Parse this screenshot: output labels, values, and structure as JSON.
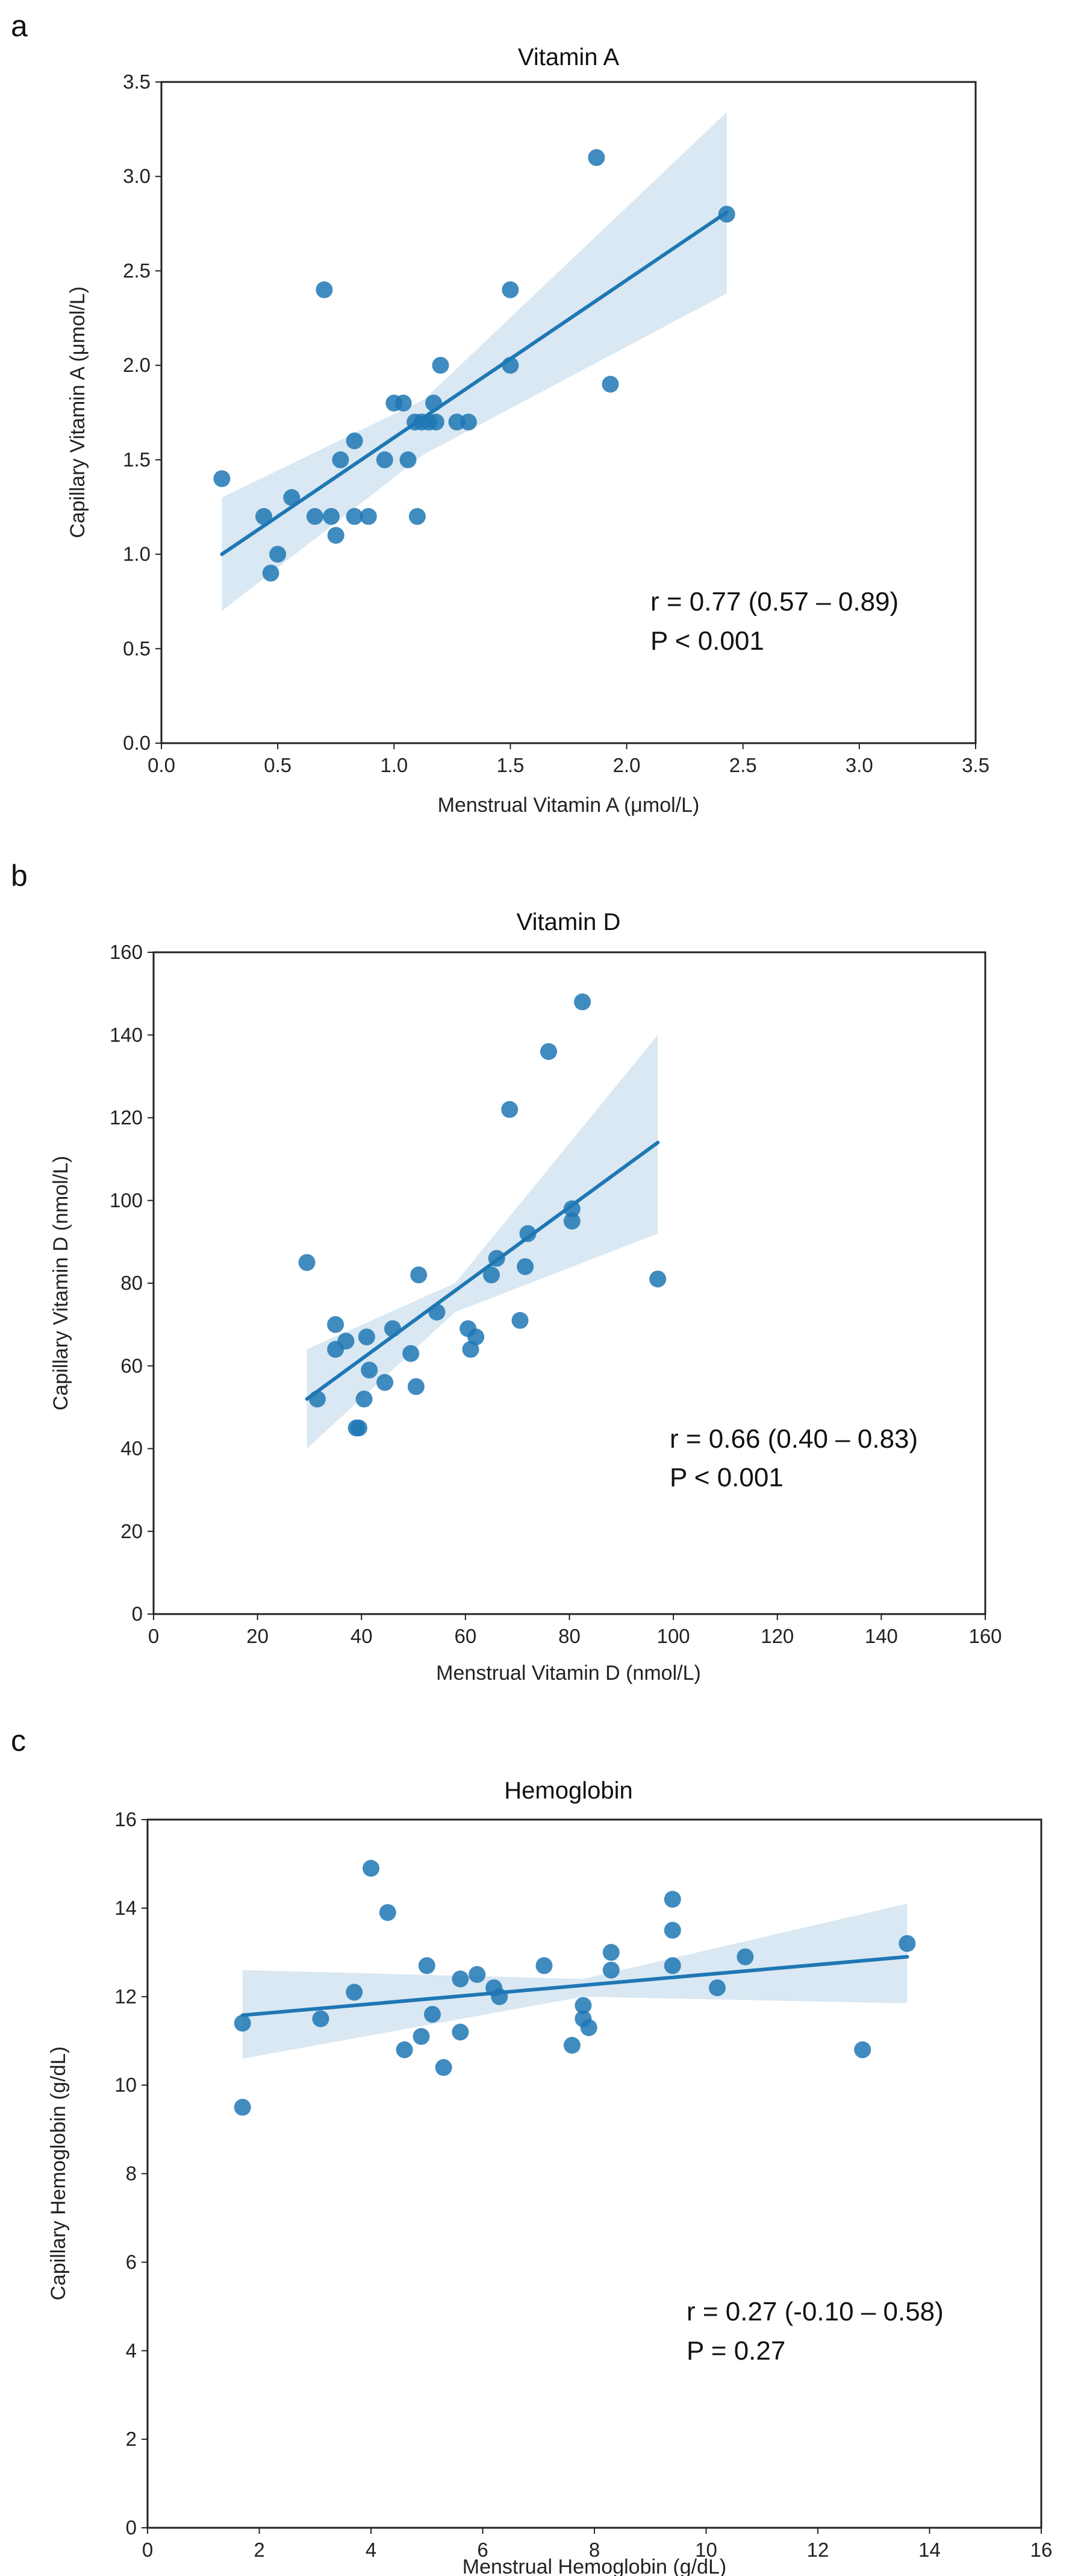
{
  "chart_data": [
    {
      "type": "scatter",
      "panel_label": "a",
      "title": "Vitamin A",
      "xlabel": "Menstrual Vitamin A (μmol/L)",
      "ylabel": "Capillary Vitamin A (μmol/L)",
      "xlim": [
        0.0,
        3.5
      ],
      "ylim": [
        0.0,
        3.5
      ],
      "xticks": [
        "0.0",
        "0.5",
        "1.0",
        "1.5",
        "2.0",
        "2.5",
        "3.0",
        "3.5"
      ],
      "yticks": [
        "0.0",
        "0.5",
        "1.0",
        "1.5",
        "2.0",
        "2.5",
        "3.0",
        "3.5"
      ],
      "grid": false,
      "color": "#1f77b4",
      "points": [
        [
          0.26,
          1.4
        ],
        [
          0.44,
          1.2
        ],
        [
          0.47,
          0.9
        ],
        [
          0.5,
          1.0
        ],
        [
          0.56,
          1.3
        ],
        [
          0.66,
          1.2
        ],
        [
          0.7,
          2.4
        ],
        [
          0.73,
          1.2
        ],
        [
          0.75,
          1.1
        ],
        [
          0.77,
          1.5
        ],
        [
          0.83,
          1.2
        ],
        [
          0.83,
          1.6
        ],
        [
          0.89,
          1.2
        ],
        [
          0.96,
          1.5
        ],
        [
          1.0,
          1.8
        ],
        [
          1.04,
          1.8
        ],
        [
          1.06,
          1.5
        ],
        [
          1.09,
          1.7
        ],
        [
          1.1,
          1.2
        ],
        [
          1.12,
          1.7
        ],
        [
          1.15,
          1.7
        ],
        [
          1.17,
          1.8
        ],
        [
          1.18,
          1.7
        ],
        [
          1.2,
          2.0
        ],
        [
          1.27,
          1.7
        ],
        [
          1.32,
          1.7
        ],
        [
          1.5,
          2.4
        ],
        [
          1.5,
          2.0
        ],
        [
          1.87,
          3.1
        ],
        [
          1.93,
          1.9
        ],
        [
          2.43,
          2.8
        ]
      ],
      "fit": {
        "x": [
          0.26,
          2.43
        ],
        "y": [
          1.0,
          2.81
        ]
      },
      "ci_band": {
        "x": [
          0.26,
          1.13,
          2.43
        ],
        "lower": [
          0.7,
          1.53,
          2.38
        ],
        "upper": [
          1.3,
          1.82,
          3.34
        ]
      },
      "annotation": [
        "r = 0.77 (0.57 – 0.89)",
        "P < 0.001"
      ]
    },
    {
      "type": "scatter",
      "panel_label": "b",
      "title": "Vitamin D",
      "xlabel": "Menstrual Vitamin D (nmol/L)",
      "ylabel": "Capillary Vitamin D (nmol/L)",
      "xlim": [
        0,
        160
      ],
      "ylim": [
        0,
        160
      ],
      "xticks": [
        "0",
        "20",
        "40",
        "60",
        "80",
        "100",
        "120",
        "140",
        "160"
      ],
      "yticks": [
        "0",
        "20",
        "40",
        "60",
        "80",
        "100",
        "120",
        "140",
        "160"
      ],
      "grid": false,
      "color": "#1f77b4",
      "points": [
        [
          29.5,
          85
        ],
        [
          31.5,
          52
        ],
        [
          35,
          70
        ],
        [
          35,
          64
        ],
        [
          37,
          66
        ],
        [
          39,
          45
        ],
        [
          39.5,
          45
        ],
        [
          40.5,
          52
        ],
        [
          41,
          67
        ],
        [
          41.5,
          59
        ],
        [
          44.5,
          56
        ],
        [
          46,
          69
        ],
        [
          49.5,
          63
        ],
        [
          50.5,
          55
        ],
        [
          51,
          82
        ],
        [
          54.5,
          73
        ],
        [
          60.5,
          69
        ],
        [
          61,
          64
        ],
        [
          62,
          67
        ],
        [
          65,
          82
        ],
        [
          66,
          86
        ],
        [
          68.5,
          122
        ],
        [
          70.5,
          71
        ],
        [
          71.5,
          84
        ],
        [
          72,
          92
        ],
        [
          76,
          136
        ],
        [
          80.5,
          98
        ],
        [
          80.5,
          95
        ],
        [
          82.5,
          148
        ],
        [
          97,
          81
        ]
      ],
      "fit": {
        "x": [
          29.5,
          97
        ],
        "y": [
          52,
          114
        ]
      },
      "ci_band": {
        "x": [
          29.5,
          58,
          97
        ],
        "lower": [
          40,
          73,
          92
        ],
        "upper": [
          64,
          80,
          140
        ]
      },
      "annotation": [
        "r = 0.66 (0.40 – 0.83)",
        "P < 0.001"
      ]
    },
    {
      "type": "scatter",
      "panel_label": "c",
      "title": "Hemoglobin",
      "xlabel": "Menstrual Hemoglobin (g/dL)",
      "ylabel": "Capillary Hemoglobin (g/dL)",
      "xlim": [
        0,
        16
      ],
      "ylim": [
        0,
        16
      ],
      "xticks": [
        "0",
        "2",
        "4",
        "6",
        "8",
        "10",
        "12",
        "14",
        "16"
      ],
      "yticks": [
        "0",
        "2",
        "4",
        "6",
        "8",
        "10",
        "12",
        "14",
        "16"
      ],
      "grid": false,
      "color": "#1f77b4",
      "points": [
        [
          1.7,
          11.4
        ],
        [
          1.7,
          9.5
        ],
        [
          3.1,
          11.5
        ],
        [
          3.7,
          12.1
        ],
        [
          4.0,
          14.9
        ],
        [
          4.3,
          13.9
        ],
        [
          4.6,
          10.8
        ],
        [
          4.9,
          11.1
        ],
        [
          5.0,
          12.7
        ],
        [
          5.1,
          11.6
        ],
        [
          5.3,
          10.4
        ],
        [
          5.6,
          11.2
        ],
        [
          5.6,
          12.4
        ],
        [
          5.9,
          12.5
        ],
        [
          6.2,
          12.2
        ],
        [
          6.3,
          12.0
        ],
        [
          7.1,
          12.7
        ],
        [
          7.6,
          10.9
        ],
        [
          7.8,
          11.8
        ],
        [
          7.8,
          11.5
        ],
        [
          7.9,
          11.3
        ],
        [
          8.3,
          13.0
        ],
        [
          8.3,
          12.6
        ],
        [
          9.4,
          14.2
        ],
        [
          9.4,
          13.5
        ],
        [
          9.4,
          12.7
        ],
        [
          10.2,
          12.2
        ],
        [
          10.7,
          12.9
        ],
        [
          12.8,
          10.8
        ],
        [
          13.6,
          13.2
        ]
      ],
      "fit": {
        "x": [
          1.7,
          13.6
        ],
        "y": [
          11.58,
          12.9
        ]
      },
      "ci_band": {
        "x": [
          1.7,
          7.8,
          13.6
        ],
        "lower": [
          10.6,
          12.0,
          11.85
        ],
        "upper": [
          12.6,
          12.4,
          14.1
        ]
      },
      "annotation": [
        "r = 0.27 (-0.10 – 0.58)",
        "P = 0.27"
      ]
    }
  ]
}
